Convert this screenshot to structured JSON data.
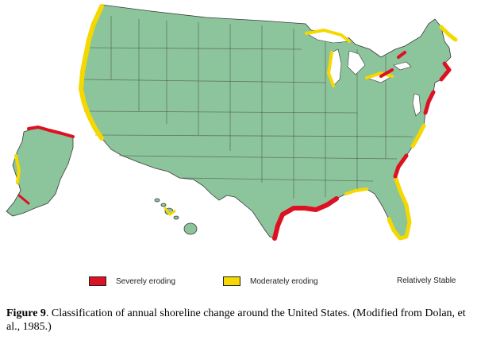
{
  "colors": {
    "land": "#8cc49c",
    "border": "#3a3a3a",
    "severe": "#dd1122",
    "moderate": "#f5d800",
    "stable": "#8cc49c",
    "water": "#ffffff"
  },
  "legend": {
    "severe_label": "Severely eroding",
    "moderate_label": "Moderately eroding",
    "stable_label": "Relatively Stable"
  },
  "caption": {
    "figure_label": "Figure 9",
    "text": ".   Classification of annual shoreline change around the United States. (Modified from Dolan, et al., 1985.)"
  }
}
